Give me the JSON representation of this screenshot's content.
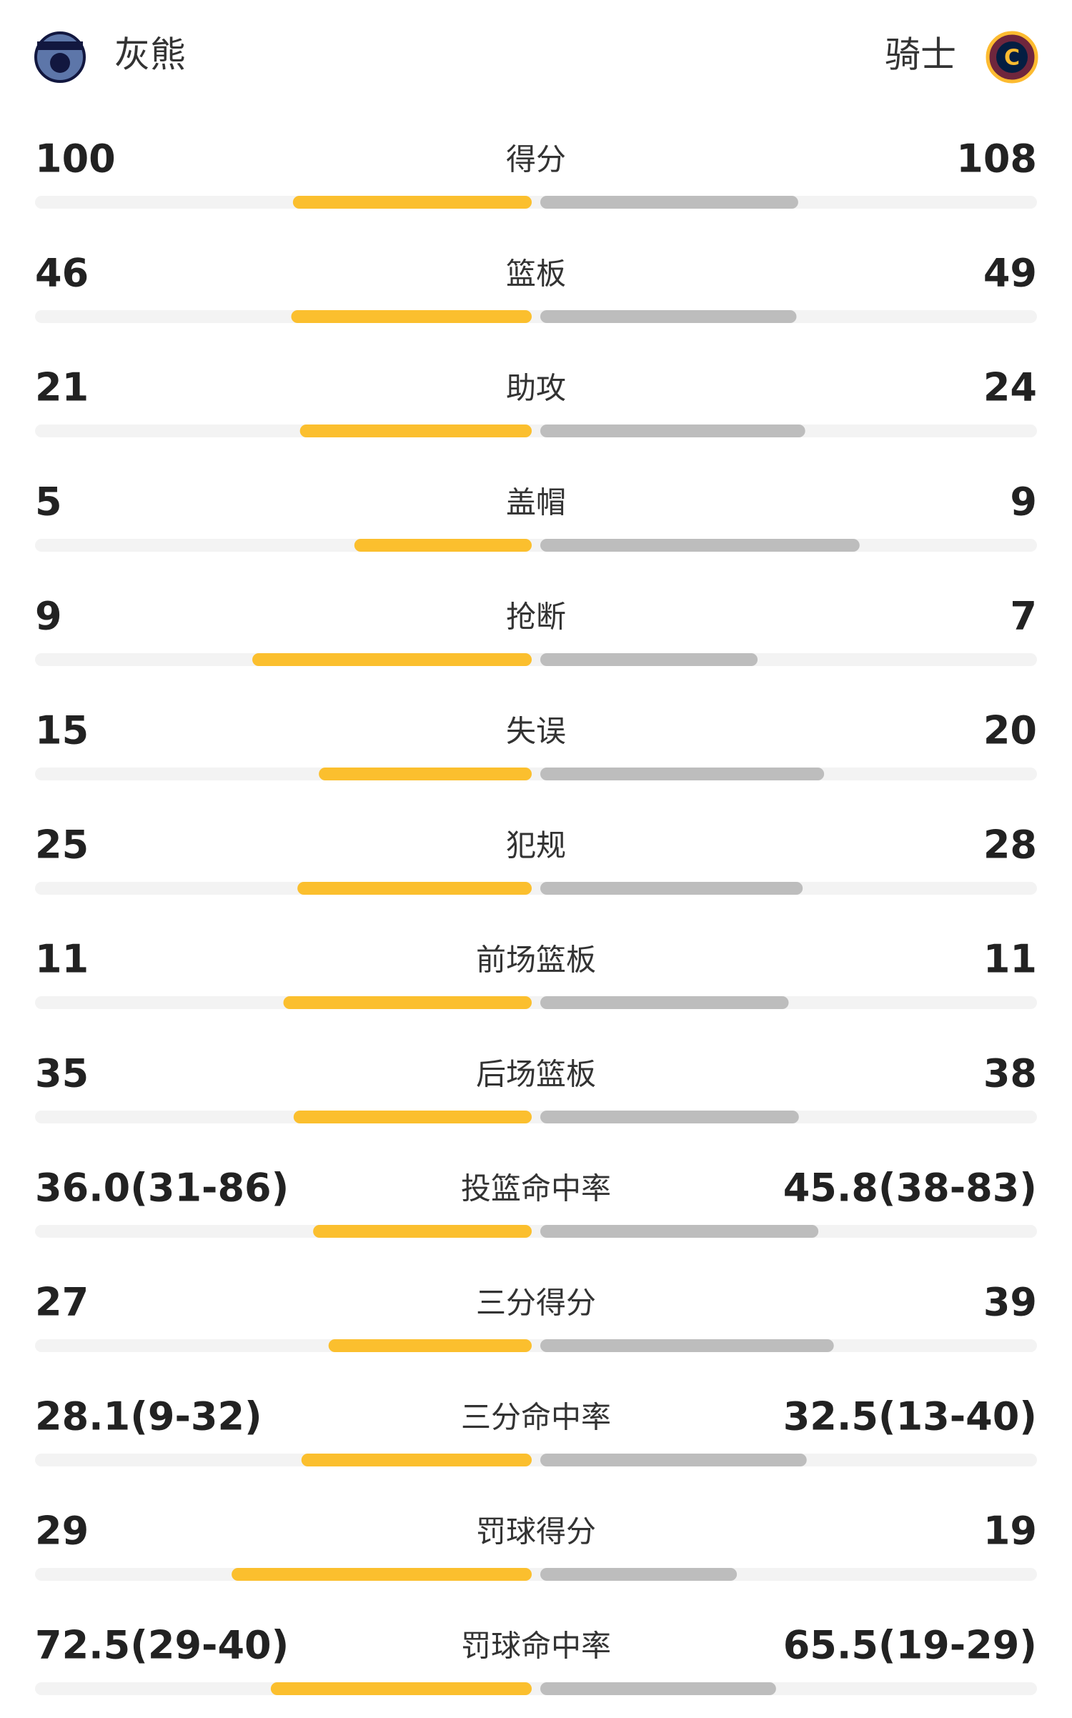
{
  "header": {
    "home": "灰熊",
    "away": "骑士"
  },
  "stats": [
    {
      "label": "得分",
      "left": 100,
      "right": 108
    },
    {
      "label": "篮板",
      "left": 46,
      "right": 49
    },
    {
      "label": "助攻",
      "left": 21,
      "right": 24
    },
    {
      "label": "盖帽",
      "left": 5,
      "right": 9
    },
    {
      "label": "抢断",
      "left": 9,
      "right": 7
    },
    {
      "label": "失误",
      "left": 15,
      "right": 20
    },
    {
      "label": "犯规",
      "left": 25,
      "right": 28
    },
    {
      "label": "前场篮板",
      "left": 11,
      "right": 11
    },
    {
      "label": "后场篮板",
      "left": 35,
      "right": 38
    },
    {
      "label": "投篮命中率",
      "left": {
        "value": 36.0,
        "label": "36.0(31-86)"
      },
      "right": {
        "value": 45.8,
        "label": "45.8(38-83)"
      }
    },
    {
      "label": "三分得分",
      "left": 27,
      "right": 39
    },
    {
      "label": "三分命中率",
      "left": {
        "value": 28.1,
        "label": "28.1(9-32)"
      },
      "right": {
        "value": 32.5,
        "label": "32.5(13-40)"
      }
    },
    {
      "label": "罚球得分",
      "left": 29,
      "right": 19
    },
    {
      "label": "罚球命中率",
      "left": {
        "value": 72.5,
        "label": "72.5(29-40)"
      },
      "right": {
        "value": 65.5,
        "label": "65.5(19-29)"
      }
    }
  ]
}
